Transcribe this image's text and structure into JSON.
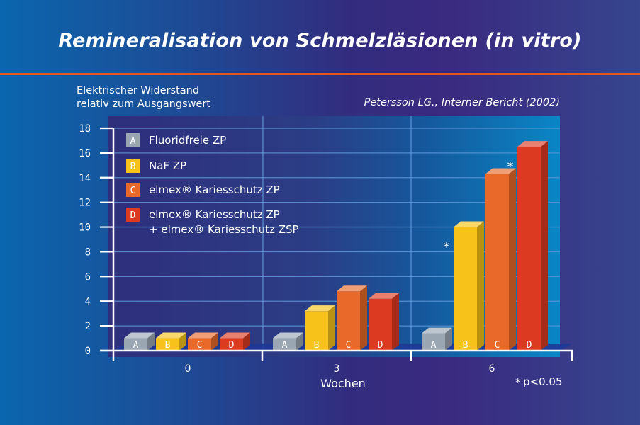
{
  "chart_data": {
    "type": "bar",
    "title": "Remineralisation von Schmelzläsionen (in vitro)",
    "ylabel_lines": [
      "Elektrischer Widerstand",
      "relativ zum Ausgangswert"
    ],
    "source": "Petersson LG., Interner Bericht (2002)",
    "xlabel": "Wochen",
    "categories": [
      "0",
      "3",
      "6"
    ],
    "ylim": [
      0,
      18
    ],
    "yticks": [
      0,
      2,
      4,
      6,
      8,
      10,
      12,
      14,
      16,
      18
    ],
    "grid": true,
    "legend_position": "top-left",
    "series": [
      {
        "key": "A",
        "name": "Fluoridfreie ZP",
        "color": "#9aa7b3",
        "values": [
          1.0,
          1.0,
          1.4
        ],
        "significant": [
          false,
          false,
          false
        ]
      },
      {
        "key": "B",
        "name": "NaF ZP",
        "color": "#f7c21a",
        "values": [
          1.0,
          3.2,
          10.0
        ],
        "significant": [
          false,
          false,
          true
        ]
      },
      {
        "key": "C",
        "name": "elmex® Kariesschutz ZP",
        "color": "#e8692a",
        "values": [
          1.0,
          4.8,
          14.3
        ],
        "significant": [
          false,
          false,
          false
        ]
      },
      {
        "key": "D",
        "name": "elmex® Kariesschutz ZP",
        "name_line2": "+ elmex®  Kariesschutz ZSP",
        "color": "#dd3a22",
        "values": [
          1.0,
          4.2,
          16.5
        ],
        "significant": [
          false,
          false,
          true
        ]
      }
    ],
    "annotation": "p<0.05",
    "annotation_marker": "*"
  }
}
